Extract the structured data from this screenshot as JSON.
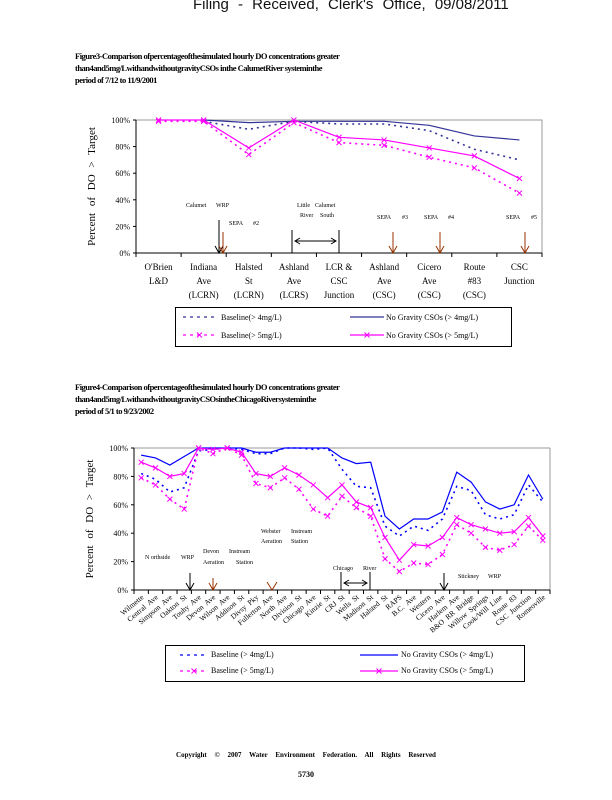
{
  "header": "Filing - Received, Clerk's Office, 09/08/2011",
  "figure3": {
    "caption": [
      "Figure3-Comparison      ofpercentageofthesimulated          hourly    DO    concentrations        greater",
      "than4and5mg/LwithandwithoutgravityCSOs                     inthe    CalumetRiver          systeminthe",
      "period    of    7/12    to   11/9/2001"
    ],
    "legend": {
      "baseline4": "Baseline(>     4mg/L)",
      "nogravity4": "No   Gravity   CSOs   (>  4mg/L)",
      "baseline5": "Baseline(>     5mg/L)",
      "nogravity5": "No   Gravity   CSOs   (>  5mg/L)"
    }
  },
  "figure4": {
    "caption": [
      "Figure4-Comparison      ofpercentageofthesimulated          hourly    DO    concentrations        greater",
      "than4and5mg/LwithandwithoutgravityCSOsintheChicagoRiversysteminthe",
      "period    of    5/1    to   9/23/2002"
    ],
    "legend": {
      "baseline4": "Baseline     (>  4mg/L)",
      "nogravity4": "No   Gravity   CSOs   (>  4mg/L)",
      "baseline5": "Baseline     (>  5mg/L)",
      "nogravity5": "No   Gravity   CSOs   (>  5mg/L)"
    }
  },
  "footer": "Copyright © 2007 Water Environment Federation. All Rights Reserved",
  "page_number": "5730",
  "colors": {
    "navy": "#333399",
    "blue": "#0000ff",
    "magenta": "#ff00ff",
    "brown": "#993300"
  },
  "chart_data": [
    {
      "type": "line",
      "title": "Figure3",
      "ylabel": "Percent of DO > Target",
      "ylim": [
        0,
        100
      ],
      "yticks": [
        "0%",
        "20%",
        "40%",
        "60%",
        "80%",
        "100%"
      ],
      "categories": [
        [
          "O'Brien",
          "L&D"
        ],
        [
          "Indiana",
          "Ave",
          "(LCRN)"
        ],
        [
          "Halsted",
          "St",
          "(LCRN)"
        ],
        [
          "Ashland",
          "Ave",
          "(LCRS)"
        ],
        [
          "LCR  &",
          "CSC",
          "Junction"
        ],
        [
          "Ashland",
          "Ave",
          "(CSC)"
        ],
        [
          "Cicero",
          "Ave",
          "(CSC)"
        ],
        [
          "Route",
          "#83",
          "(CSC)"
        ],
        [
          "CSC",
          "Junction"
        ]
      ],
      "series": [
        {
          "name": "Baseline (> 4mg/L)",
          "color": "#333399",
          "style": "dotted",
          "marker": false,
          "values": [
            null,
            99,
            93,
            99,
            97,
            97,
            92,
            78,
            70
          ]
        },
        {
          "name": "No Gravity CSOs (> 4mg/L)",
          "color": "#333399",
          "style": "solid",
          "marker": false,
          "values": [
            null,
            100,
            98,
            99,
            99,
            99,
            96,
            88,
            85
          ]
        },
        {
          "name": "Baseline (> 5mg/L)",
          "color": "#ff00ff",
          "style": "dotted",
          "marker": true,
          "values": [
            99,
            99,
            74,
            98,
            83,
            81,
            72,
            64,
            45
          ]
        },
        {
          "name": "No Gravity CSOs (> 5mg/L)",
          "color": "#ff00ff",
          "style": "solid",
          "marker": true,
          "values": [
            100,
            100,
            79,
            100,
            87,
            85,
            79,
            73,
            56
          ]
        }
      ],
      "annotations": [
        {
          "lines": [
            "Calumet",
            "WRP"
          ],
          "arrow": "black"
        },
        {
          "lines": [
            "SEPA",
            "#2"
          ],
          "arrow": "brown"
        },
        {
          "lines": [
            "Little",
            "River",
            "Calumet",
            "South"
          ],
          "arrow": "double"
        },
        {
          "lines": [
            "SEPA",
            "#3"
          ],
          "arrow": "brown"
        },
        {
          "lines": [
            "SEPA",
            "#4"
          ],
          "arrow": "brown"
        },
        {
          "lines": [
            "SEPA",
            "#5"
          ],
          "arrow": "brown"
        }
      ]
    },
    {
      "type": "line",
      "title": "Figure4",
      "ylabel": "Percent of DO > Target",
      "ylim": [
        0,
        100
      ],
      "yticks": [
        "0%",
        "20%",
        "40%",
        "60%",
        "80%",
        "100%"
      ],
      "categories": [
        "Wilmette",
        "Central Ave",
        "Simpson Ave",
        "Oakton St",
        "Touhy Ave",
        "Devon Ave",
        "Wilson Ave",
        "Addison St",
        "Divsy Pky",
        "Fullerton Ave",
        "North Ave",
        "Division St",
        "Chicago Ave",
        "Kinzie St",
        "CRJ St",
        "Wells St",
        "Madison St",
        "Halsted St",
        "RAPS",
        "B.C. Ave",
        "Western",
        "Cicero Ave",
        "Harlem Ave",
        "B&O RR Bridge",
        "Willow Springs",
        "Cook/Will Line",
        "Route 83",
        "CSC Junction",
        "Romeoville"
      ],
      "series": [
        {
          "name": "Baseline (> 4mg/L)",
          "color": "#0000ff",
          "style": "dotted",
          "marker": false,
          "values": [
            82,
            78,
            69,
            72,
            98,
            99,
            100,
            99,
            96,
            96,
            100,
            100,
            99,
            100,
            85,
            73,
            72,
            45,
            38,
            45,
            42,
            50,
            73,
            70,
            53,
            50,
            53,
            74,
            62
          ]
        },
        {
          "name": "No Gravity CSOs (> 4mg/L)",
          "color": "#0000ff",
          "style": "solid",
          "marker": false,
          "values": [
            95,
            93,
            88,
            94,
            100,
            100,
            100,
            100,
            97,
            97,
            100,
            100,
            100,
            100,
            93,
            89,
            90,
            52,
            43,
            50,
            50,
            55,
            83,
            76,
            62,
            57,
            60,
            81,
            64
          ]
        },
        {
          "name": "Baseline (> 5mg/L)",
          "color": "#ff00ff",
          "style": "dotted",
          "marker": true,
          "values": [
            79,
            74,
            64,
            57,
            100,
            96,
            100,
            95,
            75,
            72,
            79,
            71,
            57,
            52,
            66,
            58,
            52,
            22,
            13,
            19,
            18,
            25,
            46,
            40,
            30,
            28,
            32,
            45,
            35
          ]
        },
        {
          "name": "No Gravity CSOs (> 5mg/L)",
          "color": "#ff00ff",
          "style": "solid",
          "marker": true,
          "values": [
            90,
            86,
            80,
            82,
            100,
            99,
            100,
            97,
            82,
            80,
            86,
            81,
            74,
            65,
            74,
            62,
            58,
            37,
            21,
            32,
            31,
            37,
            51,
            46,
            43,
            40,
            41,
            51,
            38
          ]
        }
      ],
      "annotations": [
        {
          "lines": [
            "N orthside",
            "WRP"
          ],
          "arrow": "black"
        },
        {
          "lines": [
            "Devon",
            "Aeration",
            "Instream",
            "Station"
          ],
          "arrow": "brown"
        },
        {
          "lines": [
            "Webster",
            "Aeration",
            "Instream",
            "Station"
          ],
          "arrow": "brown-v"
        },
        {
          "lines": [
            "Chicago",
            "River"
          ],
          "arrow": "double"
        },
        {
          "lines": [
            "Stickney",
            "WRP"
          ],
          "arrow": "black"
        }
      ]
    }
  ]
}
